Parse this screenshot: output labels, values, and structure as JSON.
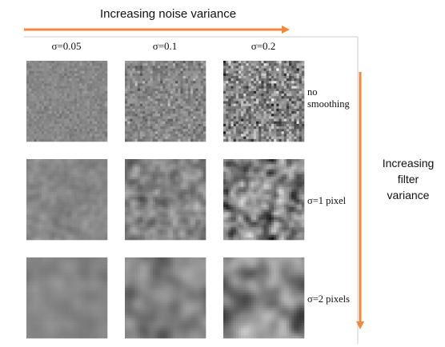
{
  "header": {
    "title": "Increasing noise variance"
  },
  "columns": [
    "σ=0.05",
    "σ=0.1",
    "σ=0.2"
  ],
  "rows": [
    "no smoothing",
    "σ=1 pixel",
    "σ=2 pixels"
  ],
  "side_label": "Increasing filter variance"
}
